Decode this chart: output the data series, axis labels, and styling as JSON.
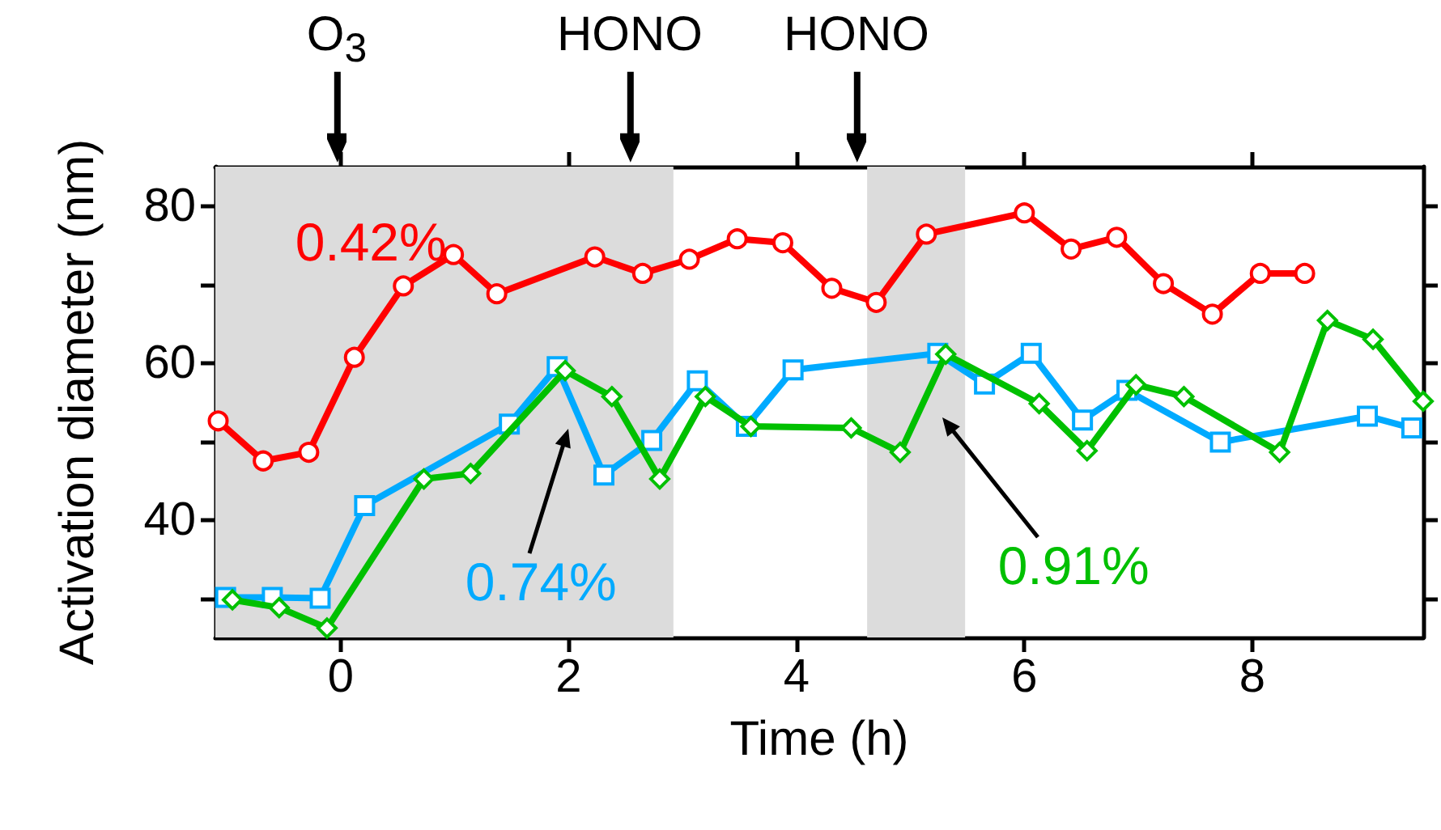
{
  "chart_data": {
    "type": "line",
    "xlabel": "Time (h)",
    "ylabel": "Activation diameter (nm)",
    "xlim": [
      -1.1,
      9.5
    ],
    "xticks": [
      0,
      2,
      4,
      6,
      8
    ],
    "ylim": [
      25,
      85
    ],
    "yticks": [
      {
        "value": 30,
        "label": null
      },
      40,
      {
        "value": 50,
        "label": null
      },
      60,
      {
        "value": 70,
        "label": null
      },
      80
    ],
    "grid": false,
    "legend": false,
    "line_style": "solid",
    "bands": [
      {
        "axis": "x",
        "from": -1.1,
        "to": 2.92,
        "color": "#dcdcdc"
      },
      {
        "axis": "x",
        "from": 4.62,
        "to": 5.48,
        "color": "#dcdcdc"
      }
    ],
    "annotations": [
      "O$_{3}$",
      "HONO",
      "HONO"
    ],
    "series": [
      {
        "name": "0.42%",
        "color": "#ff0000",
        "marker": "circle",
        "x": [
          -1.075,
          -0.68,
          -0.28,
          0.12,
          0.55,
          0.99,
          1.37,
          2.23,
          2.65,
          3.06,
          3.48,
          3.88,
          4.31,
          4.7,
          5.14,
          6.0,
          6.41,
          6.81,
          7.22,
          7.65,
          8.07,
          8.46
        ],
        "values": [
          52.6,
          47.5,
          48.6,
          60.7,
          69.8,
          73.8,
          68.8,
          73.5,
          71.4,
          73.2,
          75.8,
          75.3,
          69.5,
          67.7,
          76.4,
          79.1,
          74.5,
          76.0,
          70.1,
          66.2,
          71.4,
          71.4
        ]
      },
      {
        "name": "0.74%",
        "color": "#00aaff",
        "marker": "square",
        "x": [
          -1.01,
          -0.6,
          -0.18,
          0.21,
          1.48,
          1.9,
          2.31,
          2.73,
          3.13,
          3.56,
          3.97,
          5.24,
          5.65,
          6.06,
          6.51,
          6.9,
          7.72,
          9.01,
          9.4
        ],
        "values": [
          30.1,
          30.1,
          30.0,
          41.8,
          52.2,
          59.5,
          45.7,
          50.1,
          57.7,
          51.9,
          59.1,
          61.2,
          57.3,
          61.2,
          52.7,
          56.5,
          49.9,
          53.2,
          51.7
        ]
      },
      {
        "name": "0.91%",
        "color": "#00c000",
        "marker": "diamond",
        "x": [
          -0.95,
          -0.54,
          -0.12,
          0.73,
          1.14,
          1.97,
          2.38,
          2.8,
          3.2,
          3.6,
          4.48,
          4.91,
          5.31,
          6.13,
          6.55,
          6.98,
          7.4,
          8.24,
          8.66,
          9.06,
          9.5
        ],
        "values": [
          29.8,
          28.8,
          26.2,
          45.2,
          45.9,
          59.0,
          55.7,
          45.2,
          55.7,
          51.9,
          51.7,
          48.6,
          61.1,
          54.8,
          48.8,
          57.2,
          55.7,
          48.6,
          65.4,
          63.0,
          55.1
        ]
      }
    ]
  }
}
